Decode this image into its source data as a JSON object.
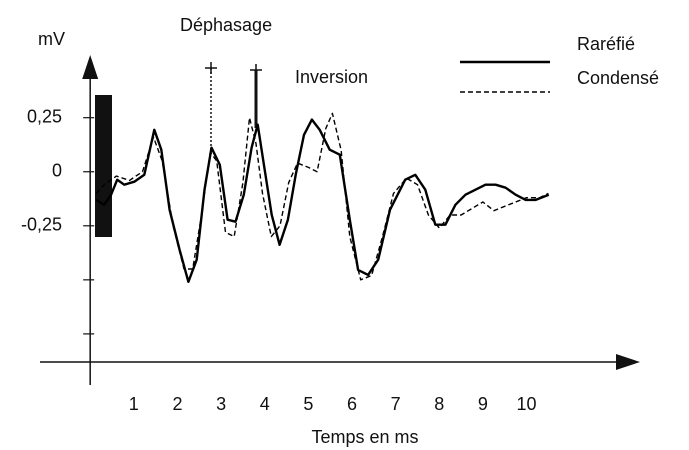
{
  "chart_data": {
    "type": "line",
    "y_label": "mV",
    "x_label": "Temps en ms",
    "annotations": [
      "Déphasage",
      "Inversion"
    ],
    "xlim": [
      -1.15,
      12.6
    ],
    "ylim": [
      -0.88,
      0.54
    ],
    "xticks": [
      1,
      2,
      3,
      4,
      5,
      6,
      7,
      8,
      9,
      10
    ],
    "yticks": [
      {
        "value": 0.25,
        "label": "0,25"
      },
      0,
      {
        "value": -0.25,
        "label": "-0,25"
      },
      {
        "value": -0.5,
        "label": null
      },
      {
        "value": -0.75,
        "label": null
      }
    ],
    "series": [
      {
        "name": "Raréfié",
        "color": "#000000",
        "dash": false,
        "x": [
          0.14,
          0.32,
          0.48,
          0.62,
          0.78,
          1.01,
          1.24,
          1.47,
          1.63,
          1.82,
          2.05,
          2.25,
          2.44,
          2.62,
          2.78,
          2.97,
          3.15,
          3.33,
          3.52,
          3.7,
          3.84,
          4.0,
          4.16,
          4.34,
          4.53,
          4.71,
          4.9,
          5.08,
          5.26,
          5.49,
          5.72,
          5.95,
          6.14,
          6.37,
          6.6,
          6.87,
          7.22,
          7.45,
          7.68,
          7.91,
          8.14,
          8.37,
          8.6,
          8.83,
          9.06,
          9.29,
          9.52,
          9.75,
          9.98,
          10.21,
          10.51
        ],
        "values": [
          -0.13,
          -0.153,
          -0.106,
          -0.037,
          -0.06,
          -0.046,
          -0.014,
          0.194,
          0.102,
          -0.176,
          -0.361,
          -0.509,
          -0.407,
          -0.083,
          0.111,
          0.032,
          -0.222,
          -0.231,
          -0.106,
          0.111,
          0.218,
          0.009,
          -0.199,
          -0.338,
          -0.222,
          -0.014,
          0.171,
          0.241,
          0.194,
          0.102,
          0.079,
          -0.222,
          -0.454,
          -0.477,
          -0.407,
          -0.176,
          -0.037,
          -0.014,
          -0.083,
          -0.245,
          -0.245,
          -0.153,
          -0.106,
          -0.083,
          -0.06,
          -0.06,
          -0.074,
          -0.106,
          -0.13,
          -0.13,
          -0.106
        ]
      },
      {
        "name": "Condensé",
        "color": "#000000",
        "dash": true,
        "x": [
          0.14,
          0.32,
          0.6,
          0.9,
          1.2,
          1.45,
          1.65,
          1.9,
          2.15,
          2.35,
          2.55,
          2.75,
          2.9,
          3.1,
          3.3,
          3.5,
          3.65,
          3.8,
          3.95,
          4.15,
          4.35,
          4.55,
          4.75,
          5.0,
          5.2,
          5.4,
          5.55,
          5.75,
          5.95,
          6.2,
          6.45,
          6.7,
          6.95,
          7.25,
          7.5,
          7.75,
          8.0,
          8.25,
          8.5,
          8.75,
          9.0,
          9.25,
          9.5,
          9.75,
          10.0,
          10.3,
          10.5
        ],
        "values": [
          -0.1,
          -0.06,
          -0.02,
          -0.04,
          0.0,
          0.16,
          0.05,
          -0.25,
          -0.45,
          -0.45,
          -0.2,
          0.09,
          0.05,
          -0.28,
          -0.3,
          -0.05,
          0.25,
          0.13,
          -0.1,
          -0.3,
          -0.25,
          -0.05,
          0.04,
          0.02,
          0.0,
          0.2,
          0.27,
          0.1,
          -0.3,
          -0.5,
          -0.48,
          -0.3,
          -0.1,
          -0.03,
          -0.06,
          -0.2,
          -0.26,
          -0.2,
          -0.2,
          -0.17,
          -0.14,
          -0.18,
          -0.16,
          -0.14,
          -0.12,
          -0.12,
          -0.1
        ]
      }
    ]
  }
}
